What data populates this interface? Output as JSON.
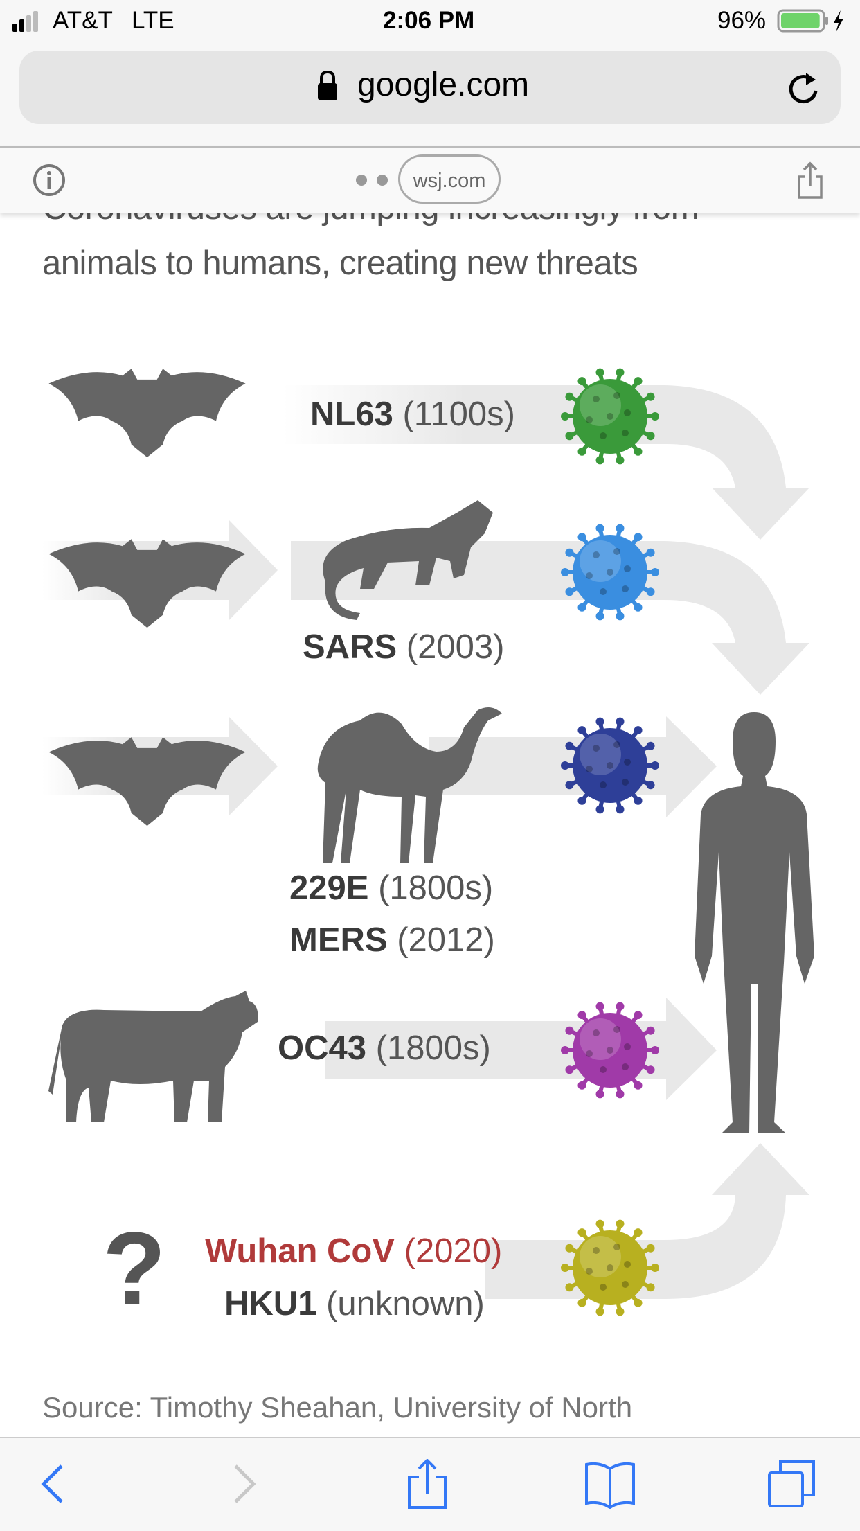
{
  "status_bar": {
    "carrier": "AT&T",
    "network": "LTE",
    "time": "2:06 PM",
    "battery": "96%",
    "battery_level": 0.96,
    "signal_bars": 2
  },
  "url_bar": {
    "domain": "google.com",
    "lock_icon": "lock-icon",
    "reload_icon": "reload-icon"
  },
  "amp_bar": {
    "info_icon": "info-icon",
    "site": "wsj.com",
    "share_icon": "share-icon"
  },
  "article": {
    "heading_lines": [
      "Coronaviruses are jumping increasingly from",
      "animals to humans, creating new threats"
    ],
    "rows": [
      {
        "name": "NL63",
        "year": "(1100s)",
        "virus_color": "#3a9a3a"
      },
      {
        "name": "SARS",
        "year": "(2003)",
        "virus_color": "#3a8ee0"
      },
      {
        "name": "229E",
        "year": "(1800s)",
        "virus_color": "#2e3f98"
      },
      {
        "name": "MERS",
        "year": "(2012)"
      },
      {
        "name": "OC43",
        "year": "(1800s)",
        "virus_color": "#a03aa8"
      },
      {
        "name": "Wuhan CoV",
        "year": "(2020)",
        "virus_color": "#b8b020",
        "highlight": "#b03a3a"
      },
      {
        "name": "HKU1",
        "year": "(unknown)"
      }
    ],
    "unknown_symbol": "?",
    "source": "Source: Timothy Sheahan, University of North"
  },
  "toolbar": {
    "back": "back-icon",
    "forward": "forward-icon",
    "share": "share-icon",
    "bookmarks": "bookmarks-icon",
    "tabs": "tabs-icon",
    "accent": "#3478f6"
  }
}
